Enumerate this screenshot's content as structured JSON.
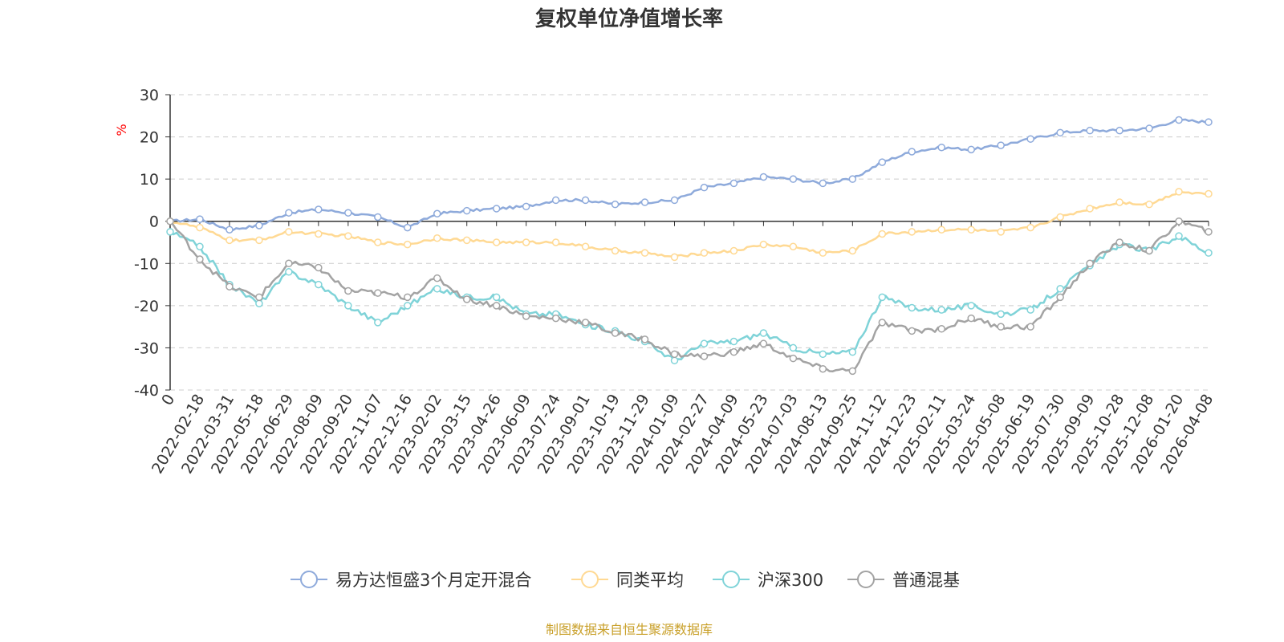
{
  "chart_data": {
    "type": "line",
    "title": "复权单位净值增长率",
    "xlabel": "",
    "ylabel": "%",
    "ylim": [
      -40,
      30
    ],
    "yticks": [
      30,
      20,
      10,
      0,
      -10,
      -20,
      -30,
      -40
    ],
    "grid": true,
    "legend_position": "bottom",
    "footer": "制图数据来自恒生聚源数据库",
    "x": [
      "0",
      "2022-02-18",
      "2022-03-31",
      "2022-05-18",
      "2022-06-29",
      "2022-08-09",
      "2022-09-20",
      "2022-11-07",
      "2022-12-16",
      "2023-02-02",
      "2023-03-15",
      "2023-04-26",
      "2023-06-09",
      "2023-07-24",
      "2023-09-01",
      "2023-10-19",
      "2023-11-29",
      "2024-01-09",
      "2024-02-27",
      "2024-04-09",
      "2024-05-23",
      "2024-07-03",
      "2024-08-13",
      "2024-09-25",
      "2024-11-12",
      "2024-12-23",
      "2025-02-11",
      "2025-03-24",
      "2025-05-08",
      "2025-06-19",
      "2025-07-30",
      "2025-09-09",
      "2025-10-28",
      "2025-12-08",
      "2026-01-20",
      "2026-04-08"
    ],
    "series": [
      {
        "name": "易方达恒盛3个月定开混合",
        "color": "#8eaadb",
        "values": [
          0,
          0.5,
          -2.0,
          -1.0,
          2.0,
          2.8,
          2.0,
          1.0,
          -1.5,
          1.8,
          2.5,
          3.0,
          3.5,
          5.0,
          5.0,
          4.0,
          4.5,
          5.0,
          8.0,
          9.0,
          10.5,
          10.0,
          9.0,
          10.0,
          14.0,
          16.5,
          17.5,
          17.0,
          18.0,
          19.5,
          21.0,
          21.5,
          21.5,
          22.0,
          24.0,
          23.5
        ]
      },
      {
        "name": "同类平均",
        "color": "#ffd993",
        "values": [
          0,
          -1.5,
          -4.5,
          -4.5,
          -2.5,
          -3.0,
          -3.5,
          -5.0,
          -5.5,
          -4.0,
          -4.5,
          -5.0,
          -5.0,
          -5.0,
          -6.0,
          -7.0,
          -7.5,
          -8.5,
          -7.5,
          -7.0,
          -5.5,
          -6.0,
          -7.5,
          -7.0,
          -3.0,
          -2.5,
          -2.0,
          -2.0,
          -2.5,
          -1.5,
          1.0,
          3.0,
          4.5,
          4.0,
          7.0,
          6.5
        ]
      },
      {
        "name": "沪深300",
        "color": "#7fd3d8",
        "values": [
          -2.5,
          -6.0,
          -15.0,
          -19.5,
          -12.0,
          -15.0,
          -20.0,
          -24.0,
          -20.0,
          -16.0,
          -18.0,
          -18.0,
          -22.0,
          -22.0,
          -24.5,
          -26.0,
          -28.5,
          -33.0,
          -29.0,
          -28.5,
          -26.5,
          -30.0,
          -31.5,
          -31.0,
          -18.0,
          -20.5,
          -21.0,
          -20.0,
          -22.0,
          -21.0,
          -16.0,
          -10.5,
          -5.5,
          -7.0,
          -3.5,
          -7.5
        ]
      },
      {
        "name": "普通混基",
        "color": "#a3a3a3",
        "values": [
          0,
          -9.0,
          -15.5,
          -18.0,
          -10.0,
          -11.0,
          -16.5,
          -17.0,
          -18.0,
          -13.5,
          -18.5,
          -20.0,
          -22.5,
          -23.0,
          -24.0,
          -26.5,
          -28.0,
          -31.5,
          -32.0,
          -31.0,
          -29.0,
          -32.5,
          -35.0,
          -35.5,
          -24.0,
          -26.0,
          -25.5,
          -23.0,
          -25.0,
          -25.0,
          -18.0,
          -10.0,
          -5.0,
          -7.0,
          0,
          -2.5
        ]
      }
    ]
  }
}
